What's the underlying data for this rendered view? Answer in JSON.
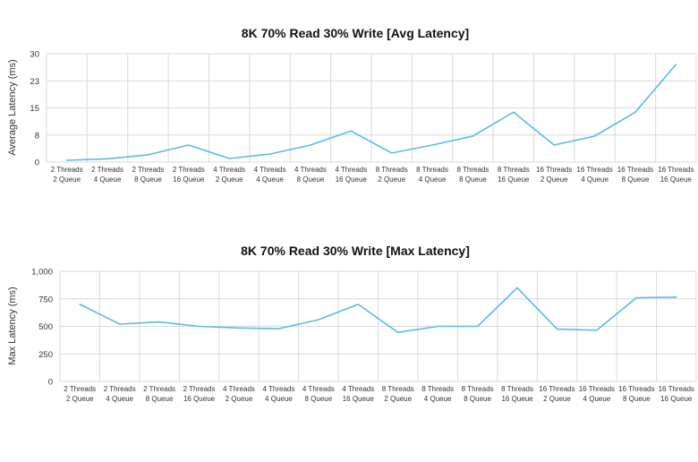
{
  "chart_data": [
    {
      "type": "line",
      "title": "8K 70% Read 30% Write [Avg Latency]",
      "xlabel": "",
      "ylabel": "Average Latency (ms)",
      "ylim": [
        0,
        30
      ],
      "yticks": [
        "0",
        "8",
        "15",
        "23",
        "30"
      ],
      "grid": true,
      "categories": [
        [
          "2 Threads",
          "2 Queue"
        ],
        [
          "2 Threads",
          "4 Queue"
        ],
        [
          "2 Threads",
          "8 Queue"
        ],
        [
          "2 Threads",
          "16 Queue"
        ],
        [
          "4 Threads",
          "2 Queue"
        ],
        [
          "4 Threads",
          "4 Queue"
        ],
        [
          "4 Threads",
          "8 Queue"
        ],
        [
          "4 Threads",
          "16 Queue"
        ],
        [
          "8 Threads",
          "2 Queue"
        ],
        [
          "8 Threads",
          "4 Queue"
        ],
        [
          "8 Threads",
          "8 Queue"
        ],
        [
          "8 Threads",
          "16 Queue"
        ],
        [
          "16 Threads",
          "2 Queue"
        ],
        [
          "16 Threads",
          "4 Queue"
        ],
        [
          "16 Threads",
          "8 Queue"
        ],
        [
          "16 Threads",
          "16 Queue"
        ]
      ],
      "series": [
        {
          "values": [
            0.5,
            0.9,
            2.0,
            4.7,
            1.0,
            2.2,
            4.7,
            8.6,
            2.5,
            4.7,
            7.2,
            13.8,
            4.7,
            7.2,
            13.8,
            27.0
          ]
        }
      ],
      "color": "#5bbbe8"
    },
    {
      "type": "line",
      "title": "8K 70% Read 30% Write [Max Latency]",
      "xlabel": "",
      "ylabel": "Max Latency (ms)",
      "ylim": [
        0,
        1000
      ],
      "yticks": [
        "0",
        "250",
        "500",
        "750",
        "1,000"
      ],
      "grid": true,
      "categories": [
        [
          "2 Threads",
          "2 Queue"
        ],
        [
          "2 Threads",
          "4 Queue"
        ],
        [
          "2 Threads",
          "8 Queue"
        ],
        [
          "2 Threads",
          "16 Queue"
        ],
        [
          "4 Threads",
          "2 Queue"
        ],
        [
          "4 Threads",
          "4 Queue"
        ],
        [
          "4 Threads",
          "8 Queue"
        ],
        [
          "4 Threads",
          "16 Queue"
        ],
        [
          "8 Threads",
          "2 Queue"
        ],
        [
          "8 Threads",
          "4 Queue"
        ],
        [
          "8 Threads",
          "8 Queue"
        ],
        [
          "8 Threads",
          "16 Queue"
        ],
        [
          "16 Threads",
          "2 Queue"
        ],
        [
          "16 Threads",
          "4 Queue"
        ],
        [
          "16 Threads",
          "8 Queue"
        ],
        [
          "16 Threads",
          "16 Queue"
        ]
      ],
      "series": [
        {
          "values": [
            700,
            520,
            540,
            500,
            485,
            478,
            560,
            700,
            445,
            500,
            500,
            850,
            475,
            465,
            760,
            765
          ]
        }
      ],
      "color": "#5bbbe8"
    }
  ]
}
